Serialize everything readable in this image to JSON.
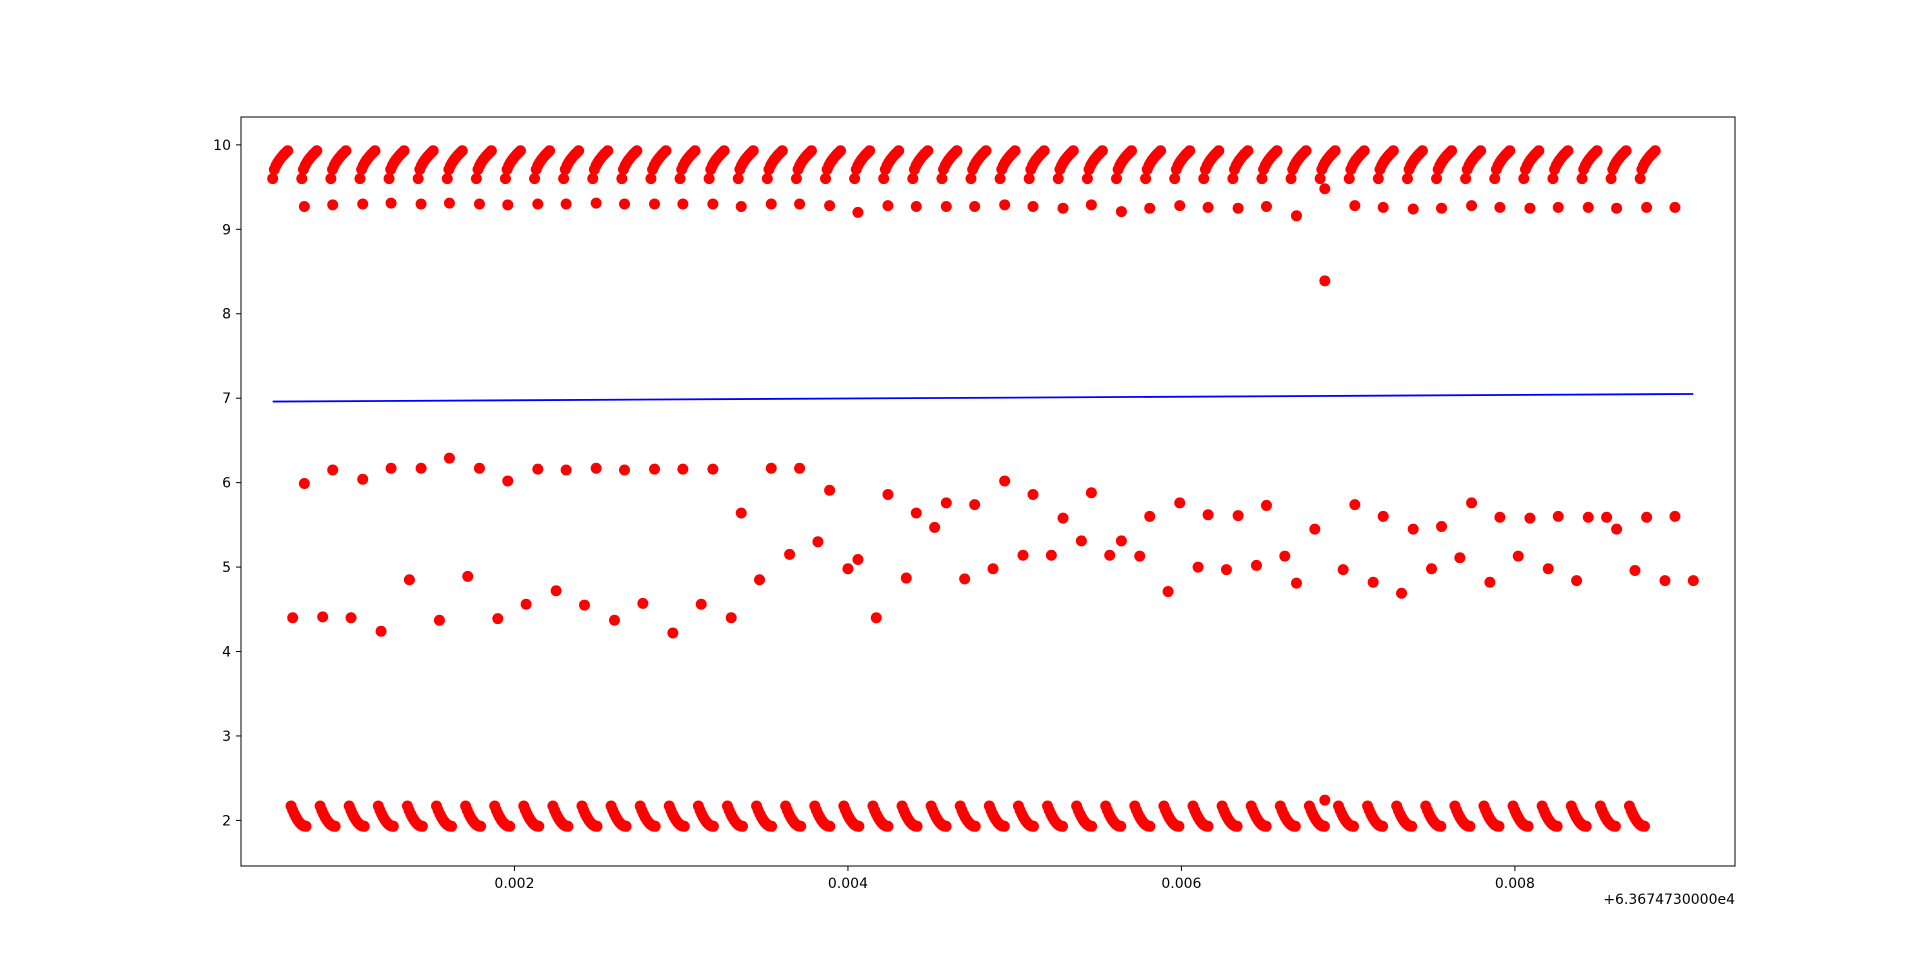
{
  "chart_data": {
    "type": "scatter",
    "title": "",
    "xlabel": "",
    "ylabel": "",
    "x_offset_label": "+6.3674730000e4",
    "xlim": [
      0.00036,
      0.00932
    ],
    "ylim": [
      1.46,
      10.33
    ],
    "x_ticks": [
      {
        "value": 0.002,
        "label": "0.002"
      },
      {
        "value": 0.004,
        "label": "0.004"
      },
      {
        "value": 0.006,
        "label": "0.006"
      },
      {
        "value": 0.008,
        "label": "0.008"
      }
    ],
    "y_ticks": [
      {
        "value": 2,
        "label": "2"
      },
      {
        "value": 3,
        "label": "3"
      },
      {
        "value": 4,
        "label": "4"
      },
      {
        "value": 5,
        "label": "5"
      },
      {
        "value": 6,
        "label": "6"
      },
      {
        "value": 7,
        "label": "7"
      },
      {
        "value": 8,
        "label": "8"
      },
      {
        "value": 9,
        "label": "9"
      },
      {
        "value": 10,
        "label": "10"
      }
    ],
    "grid": false,
    "legend": "none",
    "series": [
      {
        "kind": "scatter",
        "color": "#ff0000",
        "arcs_upper": {
          "x_start": 0.00055,
          "period": 0.0001745,
          "count": 48,
          "arc_width": 9e-05,
          "points_per_arc": 10,
          "y_low": 9.6,
          "y_high": 9.93
        },
        "arcs_lower": {
          "x_start": 0.00066,
          "period": 0.0001745,
          "count": 47,
          "arc_width": 9e-05,
          "points_per_arc": 10,
          "y_high": 2.17,
          "y_low": 1.93
        },
        "band_9": [
          [
            0.00074,
            9.27
          ],
          [
            0.00091,
            9.29
          ],
          [
            0.00109,
            9.3
          ],
          [
            0.00126,
            9.31
          ],
          [
            0.00144,
            9.3
          ],
          [
            0.00161,
            9.31
          ],
          [
            0.00179,
            9.3
          ],
          [
            0.00196,
            9.29
          ],
          [
            0.00214,
            9.3
          ],
          [
            0.00231,
            9.3
          ],
          [
            0.00249,
            9.31
          ],
          [
            0.00266,
            9.3
          ],
          [
            0.00284,
            9.3
          ],
          [
            0.00301,
            9.3
          ],
          [
            0.00319,
            9.3
          ],
          [
            0.00336,
            9.27
          ],
          [
            0.00354,
            9.3
          ],
          [
            0.00371,
            9.3
          ],
          [
            0.00389,
            9.28
          ],
          [
            0.00406,
            9.2
          ],
          [
            0.00424,
            9.28
          ],
          [
            0.00441,
            9.27
          ],
          [
            0.00459,
            9.27
          ],
          [
            0.00476,
            9.27
          ],
          [
            0.00494,
            9.29
          ],
          [
            0.00511,
            9.27
          ],
          [
            0.00529,
            9.25
          ],
          [
            0.00546,
            9.29
          ],
          [
            0.00564,
            9.21
          ],
          [
            0.00581,
            9.25
          ],
          [
            0.00599,
            9.28
          ],
          [
            0.00616,
            9.26
          ],
          [
            0.00634,
            9.25
          ],
          [
            0.00651,
            9.27
          ],
          [
            0.00669,
            9.16
          ],
          [
            0.00686,
            9.48
          ],
          [
            0.00704,
            9.28
          ],
          [
            0.00721,
            9.26
          ],
          [
            0.00739,
            9.24
          ],
          [
            0.00756,
            9.25
          ],
          [
            0.00774,
            9.28
          ],
          [
            0.00791,
            9.26
          ],
          [
            0.00809,
            9.25
          ],
          [
            0.00826,
            9.26
          ],
          [
            0.00844,
            9.26
          ],
          [
            0.00861,
            9.25
          ],
          [
            0.00879,
            9.26
          ],
          [
            0.00896,
            9.26
          ],
          [
            0.00686,
            8.39
          ],
          [
            0.00686,
            2.24
          ]
        ],
        "middle": [
          [
            0.00067,
            4.4
          ],
          [
            0.00074,
            5.99
          ],
          [
            0.00085,
            4.41
          ],
          [
            0.00091,
            6.15
          ],
          [
            0.00102,
            4.4
          ],
          [
            0.00109,
            6.04
          ],
          [
            0.0012,
            4.24
          ],
          [
            0.00126,
            6.17
          ],
          [
            0.00137,
            4.85
          ],
          [
            0.00144,
            6.17
          ],
          [
            0.00155,
            4.37
          ],
          [
            0.00161,
            6.29
          ],
          [
            0.00172,
            4.89
          ],
          [
            0.00179,
            6.17
          ],
          [
            0.0019,
            4.39
          ],
          [
            0.00196,
            6.02
          ],
          [
            0.00207,
            4.56
          ],
          [
            0.00214,
            6.16
          ],
          [
            0.00225,
            4.72
          ],
          [
            0.00231,
            6.15
          ],
          [
            0.00242,
            4.55
          ],
          [
            0.00249,
            6.17
          ],
          [
            0.0026,
            4.37
          ],
          [
            0.00266,
            6.15
          ],
          [
            0.00277,
            4.57
          ],
          [
            0.00284,
            6.16
          ],
          [
            0.00295,
            4.22
          ],
          [
            0.00301,
            6.16
          ],
          [
            0.00312,
            4.56
          ],
          [
            0.00319,
            6.16
          ],
          [
            0.0033,
            4.4
          ],
          [
            0.00336,
            5.64
          ],
          [
            0.00347,
            4.85
          ],
          [
            0.00354,
            6.17
          ],
          [
            0.00365,
            5.15
          ],
          [
            0.00371,
            6.17
          ],
          [
            0.00382,
            5.3
          ],
          [
            0.00389,
            5.91
          ],
          [
            0.004,
            4.98
          ],
          [
            0.00406,
            5.09
          ],
          [
            0.00417,
            4.4
          ],
          [
            0.00424,
            5.86
          ],
          [
            0.00435,
            4.87
          ],
          [
            0.00441,
            5.64
          ],
          [
            0.00452,
            5.47
          ],
          [
            0.00459,
            5.76
          ],
          [
            0.0047,
            4.86
          ],
          [
            0.00476,
            5.74
          ],
          [
            0.00487,
            4.98
          ],
          [
            0.00494,
            6.02
          ],
          [
            0.00505,
            5.14
          ],
          [
            0.00511,
            5.86
          ],
          [
            0.00522,
            5.14
          ],
          [
            0.00529,
            5.58
          ],
          [
            0.0054,
            5.31
          ],
          [
            0.00546,
            5.88
          ],
          [
            0.00557,
            5.14
          ],
          [
            0.00564,
            5.31
          ],
          [
            0.00575,
            5.13
          ],
          [
            0.00581,
            5.6
          ],
          [
            0.00592,
            4.71
          ],
          [
            0.00599,
            5.76
          ],
          [
            0.0061,
            5.0
          ],
          [
            0.00616,
            5.62
          ],
          [
            0.00627,
            4.97
          ],
          [
            0.00634,
            5.61
          ],
          [
            0.00645,
            5.02
          ],
          [
            0.00651,
            5.73
          ],
          [
            0.00662,
            5.13
          ],
          [
            0.00669,
            4.81
          ],
          [
            0.0068,
            5.45
          ],
          [
            0.00697,
            4.97
          ],
          [
            0.00704,
            5.74
          ],
          [
            0.00715,
            4.82
          ],
          [
            0.00721,
            5.6
          ],
          [
            0.00732,
            4.69
          ],
          [
            0.00739,
            5.45
          ],
          [
            0.0075,
            4.98
          ],
          [
            0.00756,
            5.48
          ],
          [
            0.00767,
            5.11
          ],
          [
            0.00774,
            5.76
          ],
          [
            0.00785,
            4.82
          ],
          [
            0.00791,
            5.59
          ],
          [
            0.00802,
            5.13
          ],
          [
            0.00809,
            5.58
          ],
          [
            0.0082,
            4.98
          ],
          [
            0.00826,
            5.6
          ],
          [
            0.00837,
            4.84
          ],
          [
            0.00844,
            5.59
          ],
          [
            0.00855,
            5.59
          ],
          [
            0.00861,
            5.45
          ],
          [
            0.00872,
            4.96
          ],
          [
            0.00879,
            5.59
          ],
          [
            0.0089,
            4.84
          ],
          [
            0.00896,
            5.6
          ],
          [
            0.00907,
            4.84
          ]
        ]
      },
      {
        "kind": "line",
        "color": "#0000ff",
        "x": [
          0.00055,
          0.00907
        ],
        "y": [
          6.96,
          7.05
        ]
      }
    ]
  }
}
